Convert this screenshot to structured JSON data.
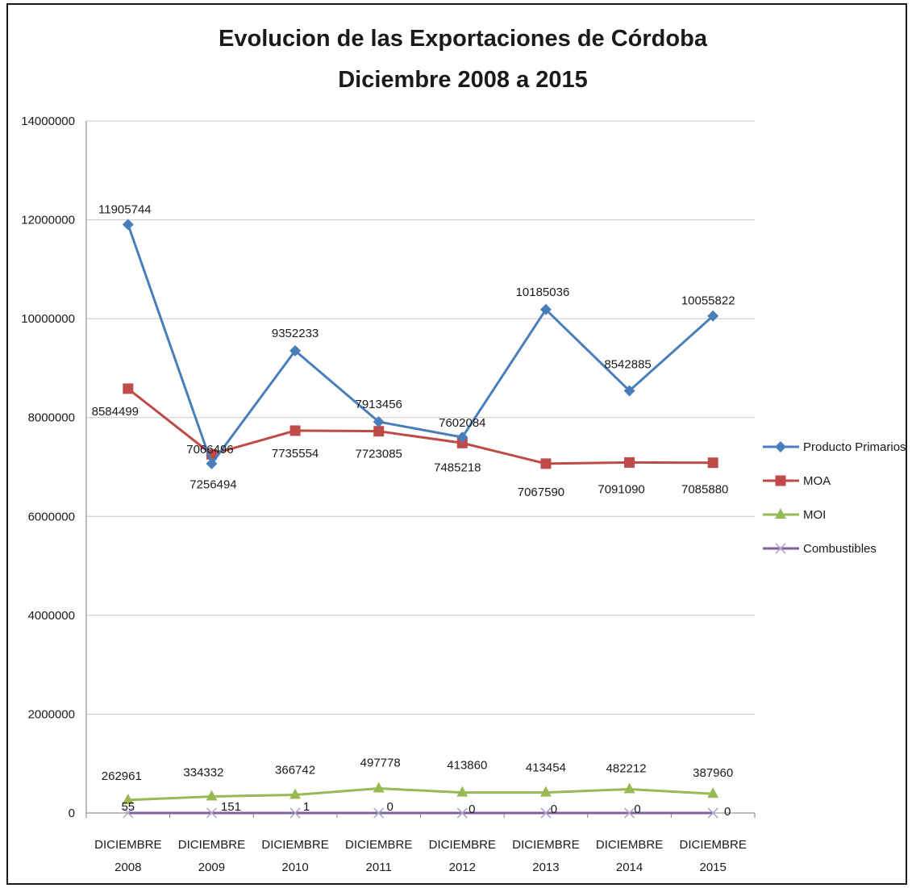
{
  "chart_data": {
    "type": "line",
    "title": "Evolucion de las Exportaciones de Córdoba",
    "subtitle": "Diciembre 2008 a 2015",
    "xlabel": "",
    "ylabel": "",
    "ylim": [
      0,
      14000000
    ],
    "yticks": [
      "0",
      "2000000",
      "4000000",
      "6000000",
      "8000000",
      "10000000",
      "12000000",
      "14000000"
    ],
    "grid": true,
    "legend_position": "right",
    "categories": [
      [
        "DICIEMBRE",
        "2008"
      ],
      [
        "DICIEMBRE",
        "2009"
      ],
      [
        "DICIEMBRE",
        "2010"
      ],
      [
        "DICIEMBRE",
        "2011"
      ],
      [
        "DICIEMBRE",
        "2012"
      ],
      [
        "DICIEMBRE",
        "2013"
      ],
      [
        "DICIEMBRE",
        "2014"
      ],
      [
        "DICIEMBRE",
        "2015"
      ]
    ],
    "series": [
      {
        "name": "Producto Primarios",
        "color": "#4a7ebb",
        "marker": "diamond",
        "values": [
          11905744,
          7066496,
          9352233,
          7913456,
          7602084,
          10185036,
          8542885,
          10055822
        ],
        "labels": [
          "11905744",
          "7066496",
          "9352233",
          "7913456",
          "7602084",
          "10185036",
          "8542885",
          "10055822"
        ]
      },
      {
        "name": "MOA",
        "color": "#be4b48",
        "marker": "square",
        "values": [
          8584499,
          7256494,
          7735554,
          7723085,
          7485218,
          7067590,
          7091090,
          7085880
        ],
        "labels": [
          "8584499",
          "7256494",
          "7735554",
          "7723085",
          "7485218",
          "7067590",
          "7091090",
          "7085880"
        ]
      },
      {
        "name": "MOI",
        "color": "#98b954",
        "marker": "triangle",
        "values": [
          262961,
          334332,
          366742,
          497778,
          413860,
          413454,
          482212,
          387960
        ],
        "labels": [
          "262961",
          "334332",
          "366742",
          "497778",
          "413860",
          "413454",
          "482212",
          "387960"
        ]
      },
      {
        "name": "Combustibles",
        "color": "#7d60a0",
        "marker": "x",
        "values": [
          55,
          151,
          1,
          0,
          0,
          0,
          0,
          0
        ],
        "labels": [
          "55",
          "151",
          "1",
          "0",
          "0",
          "0",
          "0",
          "0"
        ]
      }
    ]
  }
}
